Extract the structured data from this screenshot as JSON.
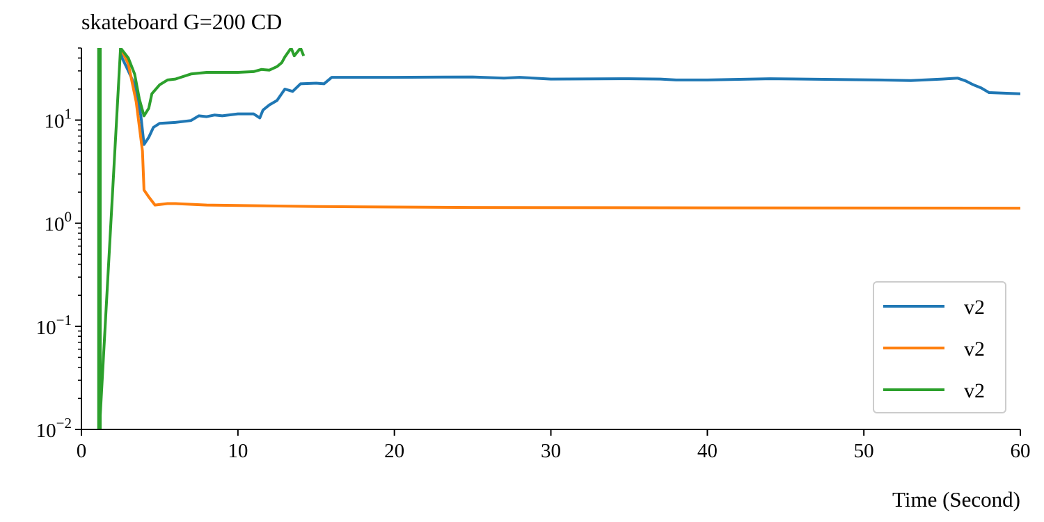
{
  "chart_data": {
    "type": "line",
    "title": "skateboard G=200 CD",
    "xlabel": "Time (Second)",
    "ylabel": "",
    "x_scale": "linear",
    "y_scale": "log",
    "xlim": [
      0,
      60
    ],
    "ylim": [
      0.01,
      50
    ],
    "x_ticks": [
      0,
      10,
      20,
      30,
      40,
      50,
      60
    ],
    "x_tick_labels": [
      "0",
      "10",
      "20",
      "30",
      "40",
      "50",
      "60"
    ],
    "y_ticks": [
      0.01,
      0.1,
      1,
      10
    ],
    "y_tick_labels": [
      {
        "base": "10",
        "exp": "−2"
      },
      {
        "base": "10",
        "exp": "−1"
      },
      {
        "base": "10",
        "exp": "0"
      },
      {
        "base": "10",
        "exp": "1"
      }
    ],
    "grid": false,
    "legend_position": "lower-right",
    "series": [
      {
        "name": "v2",
        "color": "#1f77b4",
        "points": [
          [
            2.5,
            50
          ],
          [
            2.6,
            40
          ],
          [
            3.0,
            30
          ],
          [
            3.4,
            22
          ],
          [
            3.8,
            11
          ],
          [
            4.0,
            5.8
          ],
          [
            4.3,
            6.8
          ],
          [
            4.6,
            8.5
          ],
          [
            5.0,
            9.3
          ],
          [
            6.0,
            9.5
          ],
          [
            7.0,
            9.9
          ],
          [
            7.5,
            11
          ],
          [
            8.0,
            10.8
          ],
          [
            8.5,
            11.2
          ],
          [
            9.0,
            11.0
          ],
          [
            10.0,
            11.5
          ],
          [
            11.0,
            11.5
          ],
          [
            11.4,
            10.5
          ],
          [
            11.6,
            12.5
          ],
          [
            12.0,
            14
          ],
          [
            12.5,
            15.5
          ],
          [
            13.0,
            20
          ],
          [
            13.5,
            19
          ],
          [
            14.0,
            22.5
          ],
          [
            15.0,
            22.8
          ],
          [
            15.5,
            22.5
          ],
          [
            16.0,
            26
          ],
          [
            20.0,
            26
          ],
          [
            25.0,
            26.2
          ],
          [
            27.0,
            25.5
          ],
          [
            28.0,
            26
          ],
          [
            30.0,
            25
          ],
          [
            35.0,
            25.2
          ],
          [
            37.0,
            25
          ],
          [
            38.0,
            24.5
          ],
          [
            40.0,
            24.5
          ],
          [
            44.0,
            25.2
          ],
          [
            48.0,
            24.8
          ],
          [
            51.0,
            24.5
          ],
          [
            53.0,
            24.2
          ],
          [
            55.0,
            25.0
          ],
          [
            56.0,
            25.5
          ],
          [
            56.5,
            24.0
          ],
          [
            57.0,
            22.0
          ],
          [
            57.5,
            20.5
          ],
          [
            58.0,
            18.5
          ],
          [
            60.0,
            18
          ]
        ]
      },
      {
        "name": "v2",
        "color": "#ff7f0e",
        "points": [
          [
            2.5,
            50
          ],
          [
            3.0,
            35
          ],
          [
            3.5,
            15
          ],
          [
            3.9,
            5
          ],
          [
            4.0,
            2.1
          ],
          [
            4.3,
            1.8
          ],
          [
            4.7,
            1.5
          ],
          [
            5.5,
            1.55
          ],
          [
            6.0,
            1.55
          ],
          [
            8.0,
            1.5
          ],
          [
            15.0,
            1.45
          ],
          [
            25.0,
            1.42
          ],
          [
            40.0,
            1.41
          ],
          [
            60.0,
            1.4
          ]
        ]
      },
      {
        "name": "v2",
        "color": "#2ca02c",
        "points": [
          [
            1.1,
            0.01
          ],
          [
            1.1,
            50
          ],
          [
            1.2,
            50
          ],
          [
            1.2,
            0.01
          ],
          [
            1.15,
            0.01
          ],
          [
            2.5,
            50
          ],
          [
            3.0,
            40
          ],
          [
            3.4,
            28
          ],
          [
            3.7,
            16
          ],
          [
            4.0,
            11
          ],
          [
            4.3,
            13
          ],
          [
            4.5,
            18
          ],
          [
            5.0,
            22
          ],
          [
            5.5,
            24.5
          ],
          [
            6.0,
            25
          ],
          [
            7.0,
            28
          ],
          [
            8.0,
            29
          ],
          [
            10.0,
            29
          ],
          [
            11.0,
            29.5
          ],
          [
            11.5,
            31
          ],
          [
            12.0,
            30.5
          ],
          [
            12.5,
            33
          ],
          [
            12.8,
            36
          ],
          [
            13.0,
            41
          ],
          [
            13.4,
            50
          ],
          [
            13.6,
            42
          ],
          [
            14.0,
            50
          ],
          [
            14.2,
            42
          ]
        ]
      }
    ]
  }
}
